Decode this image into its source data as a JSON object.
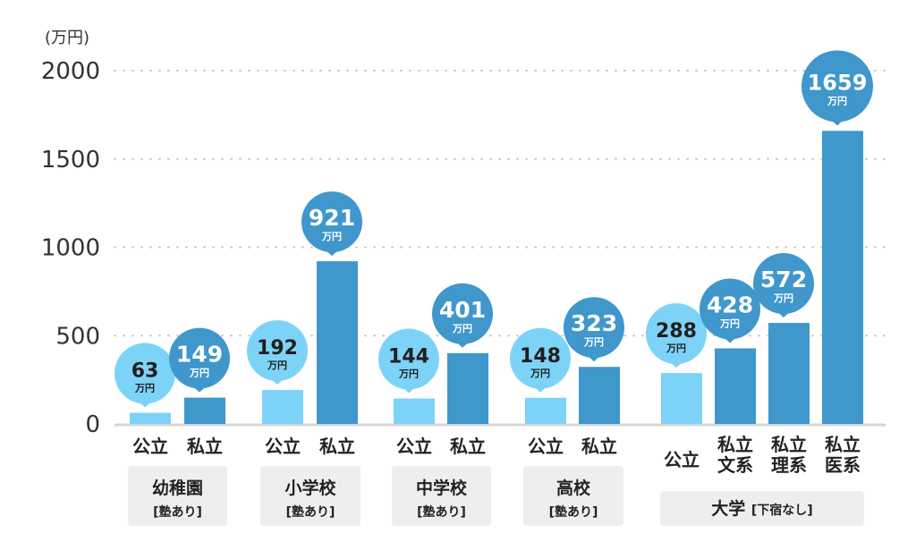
{
  "chart_data": {
    "type": "bar",
    "title": "",
    "ylabel": "(万円)",
    "xlabel": "",
    "ylim": [
      0,
      2000
    ],
    "yticks": [
      "0",
      "500",
      "1000",
      "1500",
      "2000"
    ],
    "grid": true,
    "value_unit": "万円",
    "colors": {
      "public": "#7dd3f7",
      "private": "#3f97cc"
    },
    "groups": [
      {
        "label": "幼稚園",
        "sub": "[塾あり]",
        "bars": [
          {
            "category": "公立",
            "value": 63,
            "kind": "public"
          },
          {
            "category": "私立",
            "value": 149,
            "kind": "private"
          }
        ]
      },
      {
        "label": "小学校",
        "sub": "[塾あり]",
        "bars": [
          {
            "category": "公立",
            "value": 192,
            "kind": "public"
          },
          {
            "category": "私立",
            "value": 921,
            "kind": "private"
          }
        ]
      },
      {
        "label": "中学校",
        "sub": "[塾あり]",
        "bars": [
          {
            "category": "公立",
            "value": 144,
            "kind": "public"
          },
          {
            "category": "私立",
            "value": 401,
            "kind": "private"
          }
        ]
      },
      {
        "label": "高校",
        "sub": "[塾あり]",
        "bars": [
          {
            "category": "公立",
            "value": 148,
            "kind": "public"
          },
          {
            "category": "私立",
            "value": 323,
            "kind": "private"
          }
        ]
      },
      {
        "label": "大学",
        "sub": "[下宿なし]",
        "bars": [
          {
            "category": "公立",
            "value": 288,
            "kind": "public"
          },
          {
            "category": "私立\n文系",
            "value": 428,
            "kind": "private"
          },
          {
            "category": "私立\n理系",
            "value": 572,
            "kind": "private"
          },
          {
            "category": "私立\n医系",
            "value": 1659,
            "kind": "private"
          }
        ]
      }
    ]
  }
}
